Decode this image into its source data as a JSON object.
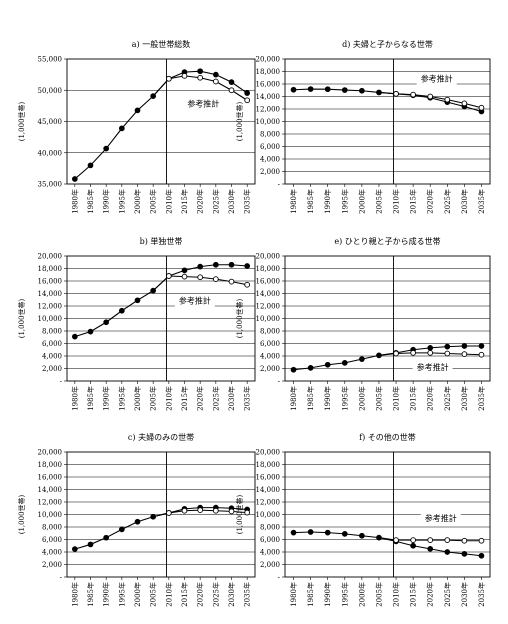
{
  "years_label_suffix": "年",
  "unit_label": "(1,000世帯)",
  "estimate_label": "参考推計",
  "chart_data": [
    {
      "id": "a",
      "type": "line",
      "title": "a) 一般世帯総数",
      "ylabel": "(1,000世帯)",
      "ylim": [
        35000,
        55000
      ],
      "yticks": [
        35000,
        40000,
        45000,
        50000,
        55000
      ],
      "ytick_labels": [
        "35,000",
        "40,000",
        "45,000",
        "50,000",
        "55,000"
      ],
      "x": [
        "1980年",
        "1985年",
        "1990年",
        "1995年",
        "2000年",
        "2005年",
        "2010年",
        "2015年",
        "2020年",
        "2025年",
        "2030年",
        "2035年"
      ],
      "series": [
        {
          "values": [
            35800,
            37980,
            40670,
            43900,
            46780,
            49060,
            null,
            null,
            null,
            null,
            null,
            null
          ]
        },
        {
          "values": [
            null,
            null,
            null,
            null,
            null,
            49060,
            51840,
            52900,
            53050,
            52500,
            51300,
            49550
          ]
        },
        {
          "values": [
            null,
            null,
            null,
            null,
            null,
            49060,
            51840,
            52300,
            52000,
            51400,
            50000,
            48400
          ]
        }
      ],
      "estimate_label": "参考推計",
      "grid": true
    },
    {
      "id": "d",
      "type": "line",
      "title": "d) 夫婦と子からなる世帯",
      "ylabel": "(1,000世帯)",
      "ylim": [
        0,
        20000
      ],
      "yticks": [
        0,
        2000,
        4000,
        6000,
        8000,
        10000,
        12000,
        14000,
        16000,
        18000,
        20000
      ],
      "ytick_labels": [
        "-",
        "2,000",
        "4,000",
        "6,000",
        "8,000",
        "10,000",
        "12,000",
        "14,000",
        "16,000",
        "18,000",
        "20,000"
      ],
      "x": [
        "1980年",
        "1985年",
        "1990年",
        "1995年",
        "2000年",
        "2005年",
        "2010年",
        "2015年",
        "2020年",
        "2025年",
        "2030年",
        "2035年"
      ],
      "series": [
        {
          "values": [
            15080,
            15190,
            15170,
            15030,
            14920,
            14650,
            null,
            null,
            null,
            null,
            null,
            null
          ]
        },
        {
          "values": [
            null,
            null,
            null,
            null,
            null,
            14650,
            14430,
            14200,
            13800,
            13100,
            12400,
            11600
          ]
        },
        {
          "values": [
            null,
            null,
            null,
            null,
            null,
            14650,
            14430,
            14300,
            14000,
            13500,
            12900,
            12200
          ]
        }
      ],
      "estimate_label": "参考推計",
      "grid": true
    },
    {
      "id": "b",
      "type": "line",
      "title": "b) 単独世帯",
      "ylabel": "(1,000世帯)",
      "ylim": [
        0,
        20000
      ],
      "yticks": [
        0,
        2000,
        4000,
        6000,
        8000,
        10000,
        12000,
        14000,
        16000,
        18000,
        20000
      ],
      "ytick_labels": [
        "-",
        "2,000",
        "4,000",
        "6,000",
        "8,000",
        "10,000",
        "12,000",
        "14,000",
        "16,000",
        "18,000",
        "20,000"
      ],
      "x": [
        "1980年",
        "1985年",
        "1990年",
        "1995年",
        "2000年",
        "2005年",
        "2010年",
        "2015年",
        "2020年",
        "2025年",
        "2030年",
        "2035年"
      ],
      "series": [
        {
          "values": [
            7100,
            7900,
            9400,
            11240,
            12910,
            14460,
            null,
            null,
            null,
            null,
            null,
            null
          ]
        },
        {
          "values": [
            null,
            null,
            null,
            null,
            null,
            14460,
            16800,
            17700,
            18300,
            18600,
            18600,
            18400
          ]
        },
        {
          "values": [
            null,
            null,
            null,
            null,
            null,
            14460,
            16800,
            16700,
            16600,
            16300,
            15900,
            15400
          ]
        }
      ],
      "estimate_label": "参考推計",
      "grid": true
    },
    {
      "id": "e",
      "type": "line",
      "title": "e) ひとり親と子から成る世帯",
      "ylabel": "(1,000世帯)",
      "ylim": [
        0,
        20000
      ],
      "yticks": [
        0,
        2000,
        4000,
        6000,
        8000,
        10000,
        12000,
        14000,
        16000,
        18000,
        20000
      ],
      "ytick_labels": [
        "-",
        "2,000",
        "4,000",
        "6,000",
        "8,000",
        "10,000",
        "12,000",
        "14,000",
        "16,000",
        "18,000",
        "20,000"
      ],
      "x": [
        "1980年",
        "1985年",
        "1990年",
        "1995年",
        "2000年",
        "2005年",
        "2010年",
        "2015年",
        "2020年",
        "2025年",
        "2030年",
        "2035年"
      ],
      "series": [
        {
          "values": [
            1800,
            2100,
            2600,
            2900,
            3500,
            4100,
            null,
            null,
            null,
            null,
            null,
            null
          ]
        },
        {
          "values": [
            null,
            null,
            null,
            null,
            null,
            4100,
            4500,
            5000,
            5300,
            5500,
            5600,
            5600
          ]
        },
        {
          "values": [
            null,
            null,
            null,
            null,
            null,
            4100,
            4400,
            4500,
            4500,
            4400,
            4300,
            4200
          ]
        }
      ],
      "estimate_label": "参考推計",
      "grid": true
    },
    {
      "id": "c",
      "type": "line",
      "title": "c) 夫婦のみの世帯",
      "ylabel": "(1,000世帯)",
      "ylim": [
        0,
        20000
      ],
      "yticks": [
        0,
        2000,
        4000,
        6000,
        8000,
        10000,
        12000,
        14000,
        16000,
        18000,
        20000
      ],
      "ytick_labels": [
        "-",
        "2,000",
        "4,000",
        "6,000",
        "8,000",
        "10,000",
        "12,000",
        "14,000",
        "16,000",
        "18,000",
        "20,000"
      ],
      "x": [
        "1980年",
        "1985年",
        "1990年",
        "1995年",
        "2000年",
        "2005年",
        "2010年",
        "2015年",
        "2020年",
        "2025年",
        "2030年",
        "2035年"
      ],
      "series": [
        {
          "values": [
            4460,
            5210,
            6290,
            7620,
            8840,
            9640,
            null,
            null,
            null,
            null,
            null,
            null
          ]
        },
        {
          "values": [
            null,
            null,
            null,
            null,
            null,
            9640,
            10250,
            10900,
            11100,
            11100,
            11000,
            10800
          ]
        },
        {
          "values": [
            null,
            null,
            null,
            null,
            null,
            9640,
            10250,
            10600,
            10700,
            10600,
            10500,
            10300
          ]
        }
      ],
      "grid": true
    },
    {
      "id": "f",
      "type": "line",
      "title": "f) その他の世帯",
      "ylabel": "(1,000世帯)",
      "ylim": [
        0,
        20000
      ],
      "yticks": [
        0,
        2000,
        4000,
        6000,
        8000,
        10000,
        12000,
        14000,
        16000,
        18000,
        20000
      ],
      "ytick_labels": [
        "-",
        "2,000",
        "4,000",
        "6,000",
        "8,000",
        "10,000",
        "12,000",
        "14,000",
        "16,000",
        "18,000",
        "20,000"
      ],
      "x": [
        "1980年",
        "1985年",
        "1990年",
        "1995年",
        "2000年",
        "2005年",
        "2010年",
        "2015年",
        "2020年",
        "2025年",
        "2030年",
        "2035年"
      ],
      "series": [
        {
          "values": [
            7100,
            7200,
            7100,
            6900,
            6600,
            6300,
            null,
            null,
            null,
            null,
            null,
            null
          ]
        },
        {
          "values": [
            null,
            null,
            null,
            null,
            null,
            6300,
            5700,
            5000,
            4500,
            4000,
            3700,
            3400
          ]
        },
        {
          "values": [
            null,
            null,
            null,
            null,
            null,
            6300,
            5900,
            5900,
            5900,
            5900,
            5800,
            5800
          ]
        }
      ],
      "estimate_label": "参考推計",
      "grid": true
    }
  ]
}
